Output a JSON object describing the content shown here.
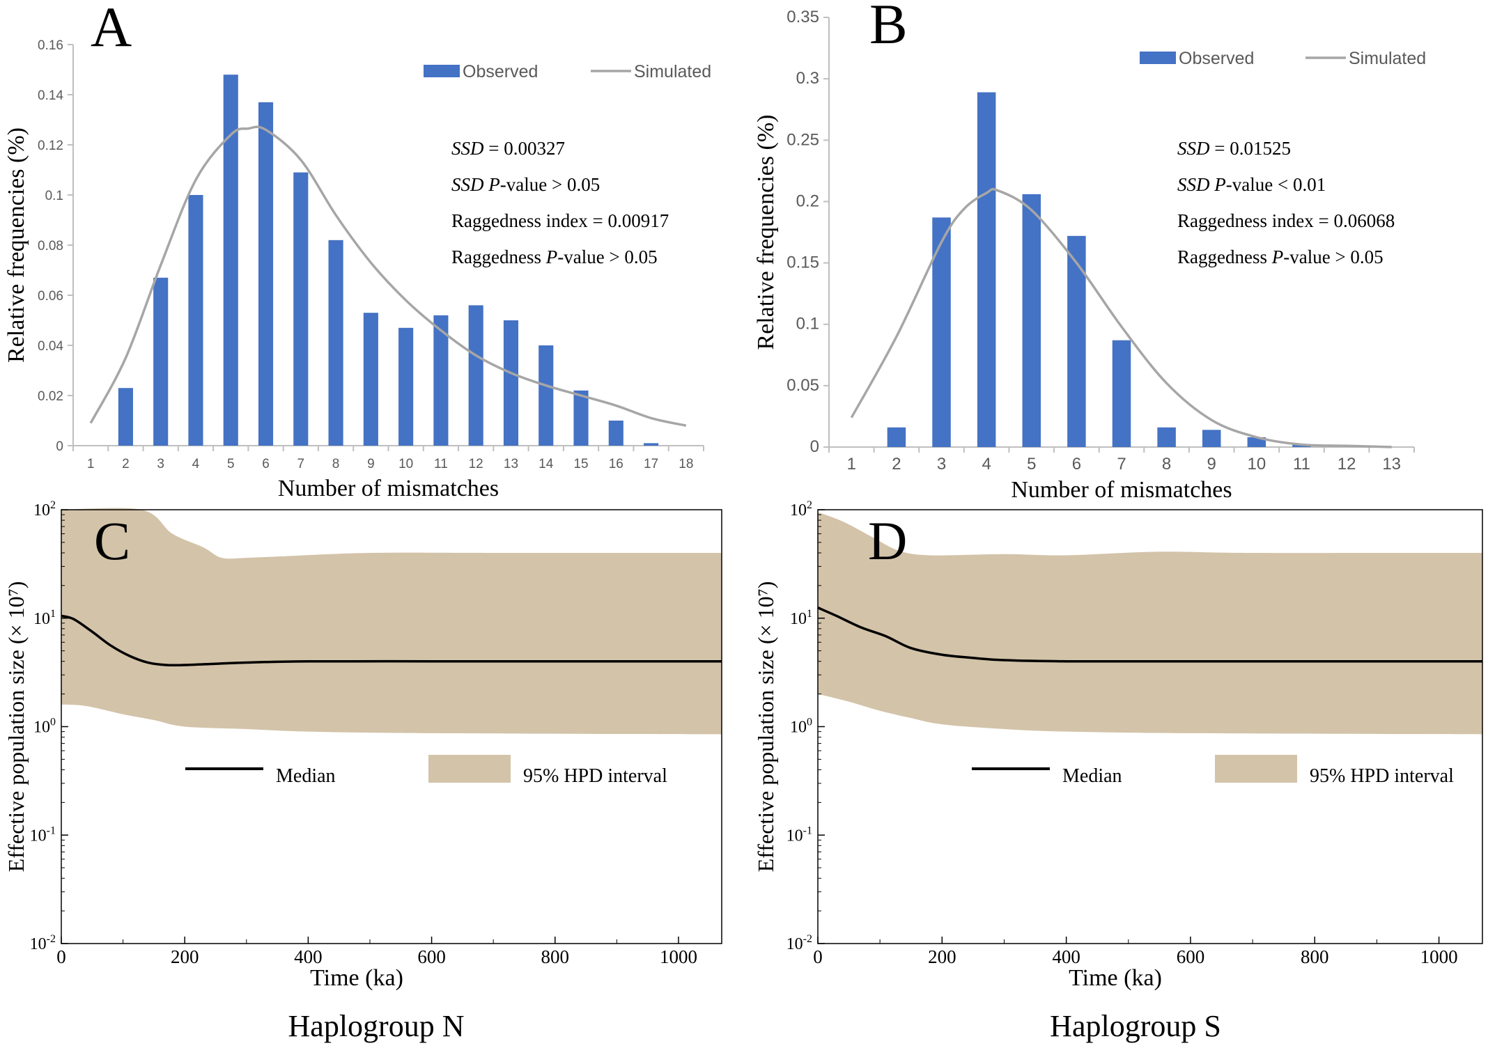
{
  "colors": {
    "bar": "#4472C4",
    "simulated": "#A6A6A6",
    "hpd": "#D3C3A9",
    "median": "#000000",
    "axis": "#bfbfbf"
  },
  "captions": {
    "left": "Haplogroup N",
    "right": "Haplogroup S"
  },
  "chart_data": [
    {
      "id": "A",
      "type": "bar",
      "panel_label": "A",
      "xlabel": "Number of mismatches",
      "ylabel": "Relative frequencies (%)",
      "ylim": [
        0,
        0.16
      ],
      "yticks": [
        "0",
        "0.02",
        "0.04",
        "0.06",
        "0.08",
        "0.1",
        "0.12",
        "0.14",
        "0.16"
      ],
      "categories": [
        "1",
        "2",
        "3",
        "4",
        "5",
        "6",
        "7",
        "8",
        "9",
        "10",
        "11",
        "12",
        "13",
        "14",
        "15",
        "16",
        "17",
        "18"
      ],
      "legend": {
        "observed": "Observed",
        "simulated": "Simulated",
        "position": "top-right"
      },
      "series": [
        {
          "name": "Observed",
          "kind": "bar",
          "values": [
            0,
            0.023,
            0.067,
            0.1,
            0.148,
            0.137,
            0.109,
            0.082,
            0.053,
            0.047,
            0.052,
            0.056,
            0.05,
            0.04,
            0.022,
            0.01,
            0.001,
            0
          ]
        },
        {
          "name": "Simulated",
          "kind": "line",
          "points": [
            [
              1,
              0.009
            ],
            [
              2,
              0.035
            ],
            [
              3,
              0.072
            ],
            [
              4,
              0.106
            ],
            [
              5,
              0.124
            ],
            [
              5.5,
              0.1265
            ],
            [
              6,
              0.126
            ],
            [
              7,
              0.114
            ],
            [
              8,
              0.092
            ],
            [
              9,
              0.073
            ],
            [
              10,
              0.058
            ],
            [
              11,
              0.046
            ],
            [
              12,
              0.036
            ],
            [
              13,
              0.029
            ],
            [
              14,
              0.024
            ],
            [
              15,
              0.02
            ],
            [
              16,
              0.016
            ],
            [
              17,
              0.011
            ],
            [
              18,
              0.008
            ]
          ]
        }
      ],
      "stats": [
        {
          "label": "SSD",
          "suffix": " = 0.00327"
        },
        {
          "label": "SSD P",
          "suffix": "-value > 0.05"
        },
        {
          "label": "Raggedness index",
          "suffix": " = 0.00917"
        },
        {
          "label": "Raggedness P",
          "suffix": "-value > 0.05"
        }
      ]
    },
    {
      "id": "B",
      "type": "bar",
      "panel_label": "B",
      "xlabel": "Number of mismatches",
      "ylabel": "Relative frequencies (%)",
      "ylim": [
        0,
        0.35
      ],
      "yticks": [
        "0",
        "0.05",
        "0.1",
        "0.15",
        "0.2",
        "0.25",
        "0.3",
        "0.35"
      ],
      "categories": [
        "1",
        "2",
        "3",
        "4",
        "5",
        "6",
        "7",
        "8",
        "9",
        "10",
        "11",
        "12",
        "13"
      ],
      "legend": {
        "observed": "Observed",
        "simulated": "Simulated",
        "position": "top-right"
      },
      "series": [
        {
          "name": "Observed",
          "kind": "bar",
          "values": [
            0,
            0.016,
            0.187,
            0.289,
            0.206,
            0.172,
            0.087,
            0.016,
            0.014,
            0.008,
            0.002,
            0,
            0
          ]
        },
        {
          "name": "Simulated",
          "kind": "line",
          "points": [
            [
              1,
              0.024
            ],
            [
              2,
              0.09
            ],
            [
              3,
              0.167
            ],
            [
              3.5,
              0.194
            ],
            [
              4,
              0.207
            ],
            [
              4.25,
              0.209
            ],
            [
              5,
              0.193
            ],
            [
              6,
              0.15
            ],
            [
              7,
              0.098
            ],
            [
              8,
              0.052
            ],
            [
              9,
              0.022
            ],
            [
              10,
              0.008
            ],
            [
              11,
              0.002
            ],
            [
              12,
              0.001
            ],
            [
              13,
              0
            ]
          ]
        }
      ],
      "stats": [
        {
          "label": "SSD",
          "suffix": " = 0.01525"
        },
        {
          "label": "SSD P",
          "suffix": "-value < 0.01"
        },
        {
          "label": "Raggedness index",
          "suffix": " = 0.06068"
        },
        {
          "label": "Raggedness P",
          "suffix": "-value > 0.05"
        }
      ]
    },
    {
      "id": "C",
      "type": "area",
      "panel_label": "C",
      "xlabel": "Time (ka)",
      "ylabel": "Effective population size (× 10⁷)",
      "xlim": [
        0,
        1070
      ],
      "xticks": [
        "0",
        "200",
        "400",
        "600",
        "800",
        "1000"
      ],
      "ylim_log10": [
        -2,
        2
      ],
      "yticks": [
        {
          "base": "10",
          "exp": "2"
        },
        {
          "base": "10",
          "exp": "1"
        },
        {
          "base": "10",
          "exp": "0"
        },
        {
          "base": "10",
          "exp": "-1"
        },
        {
          "base": "10",
          "exp": "-2"
        }
      ],
      "legend": {
        "median": "Median",
        "hpd": "95% HPD interval"
      },
      "median": [
        [
          0,
          10.5
        ],
        [
          20,
          9.8
        ],
        [
          50,
          7.5
        ],
        [
          80,
          5.6
        ],
        [
          110,
          4.5
        ],
        [
          140,
          3.9
        ],
        [
          170,
          3.7
        ],
        [
          200,
          3.7
        ],
        [
          250,
          3.8
        ],
        [
          300,
          3.9
        ],
        [
          400,
          4.0
        ],
        [
          600,
          4.0
        ],
        [
          800,
          4.0
        ],
        [
          1070,
          4.0
        ]
      ],
      "hpd_upper": [
        [
          0,
          100
        ],
        [
          130,
          100
        ],
        [
          180,
          60
        ],
        [
          230,
          45
        ],
        [
          260,
          36
        ],
        [
          300,
          36
        ],
        [
          350,
          37
        ],
        [
          500,
          40
        ],
        [
          700,
          40
        ],
        [
          1070,
          40
        ]
      ],
      "hpd_lower": [
        [
          0,
          1.6
        ],
        [
          40,
          1.55
        ],
        [
          100,
          1.3
        ],
        [
          150,
          1.15
        ],
        [
          200,
          1.0
        ],
        [
          300,
          0.95
        ],
        [
          400,
          0.9
        ],
        [
          600,
          0.87
        ],
        [
          1070,
          0.85
        ]
      ]
    },
    {
      "id": "D",
      "type": "area",
      "panel_label": "D",
      "xlabel": "Time (ka)",
      "ylabel": "Effective population size (× 10⁷)",
      "xlim": [
        0,
        1070
      ],
      "xticks": [
        "0",
        "200",
        "400",
        "600",
        "800",
        "1000"
      ],
      "ylim_log10": [
        -2,
        2
      ],
      "yticks": [
        {
          "base": "10",
          "exp": "2"
        },
        {
          "base": "10",
          "exp": "1"
        },
        {
          "base": "10",
          "exp": "0"
        },
        {
          "base": "10",
          "exp": "-1"
        },
        {
          "base": "10",
          "exp": "-2"
        }
      ],
      "legend": {
        "median": "Median",
        "hpd": "95% HPD interval"
      },
      "median": [
        [
          0,
          12.5
        ],
        [
          30,
          10.5
        ],
        [
          70,
          8.2
        ],
        [
          110,
          6.8
        ],
        [
          150,
          5.3
        ],
        [
          200,
          4.6
        ],
        [
          250,
          4.3
        ],
        [
          300,
          4.1
        ],
        [
          400,
          4.0
        ],
        [
          600,
          4.0
        ],
        [
          800,
          4.0
        ],
        [
          1070,
          4.0
        ]
      ],
      "hpd_upper": [
        [
          0,
          95
        ],
        [
          40,
          78
        ],
        [
          90,
          55
        ],
        [
          130,
          42
        ],
        [
          180,
          38
        ],
        [
          300,
          39
        ],
        [
          400,
          38
        ],
        [
          550,
          41
        ],
        [
          700,
          40
        ],
        [
          1070,
          40
        ]
      ],
      "hpd_lower": [
        [
          0,
          2.0
        ],
        [
          50,
          1.7
        ],
        [
          100,
          1.4
        ],
        [
          150,
          1.2
        ],
        [
          200,
          1.05
        ],
        [
          300,
          0.95
        ],
        [
          400,
          0.9
        ],
        [
          600,
          0.87
        ],
        [
          1070,
          0.85
        ]
      ]
    }
  ]
}
